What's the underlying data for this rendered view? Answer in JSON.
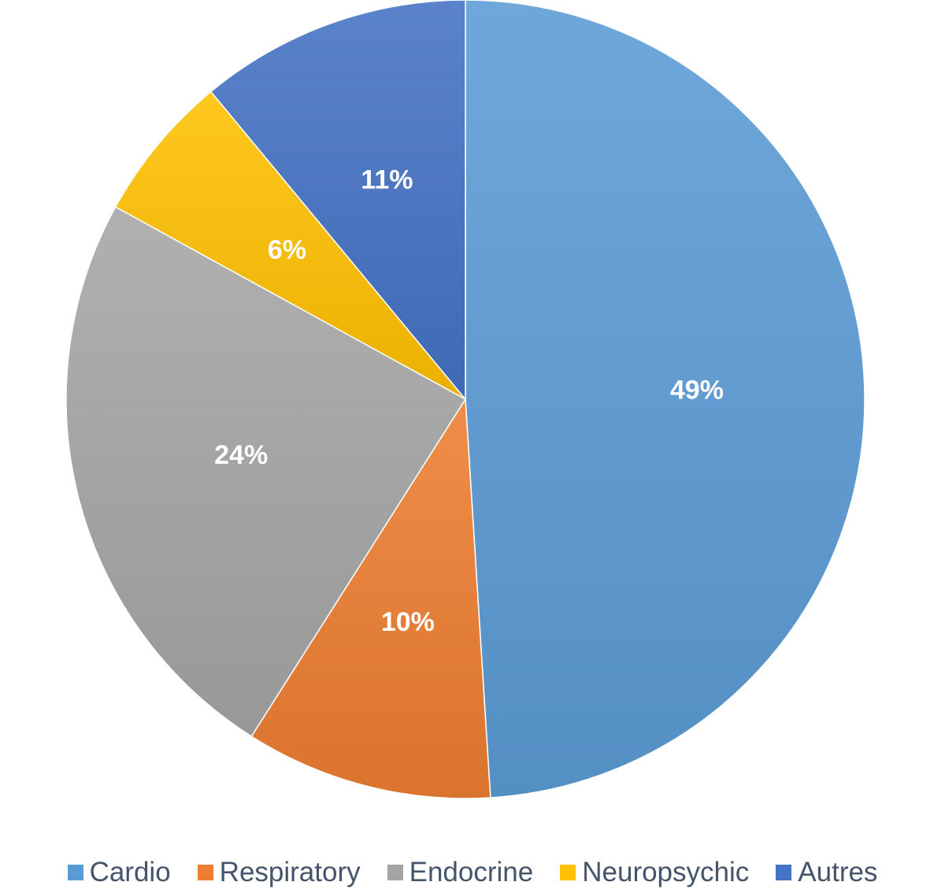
{
  "chart_data": {
    "type": "pie",
    "title": "",
    "legend_position": "bottom",
    "slices": [
      {
        "label": "Cardio",
        "value": 49,
        "display": "49%",
        "color": "#5b9bd5"
      },
      {
        "label": "Respiratory",
        "value": 10,
        "display": "10%",
        "color": "#ed7d31"
      },
      {
        "label": "Endocrine",
        "value": 24,
        "display": "24%",
        "color": "#a5a5a5"
      },
      {
        "label": "Neuropsychic",
        "value": 6,
        "display": "6%",
        "color": "#ffc000"
      },
      {
        "label": "Autres",
        "value": 11,
        "display": "11%",
        "color": "#4472c4"
      }
    ]
  }
}
